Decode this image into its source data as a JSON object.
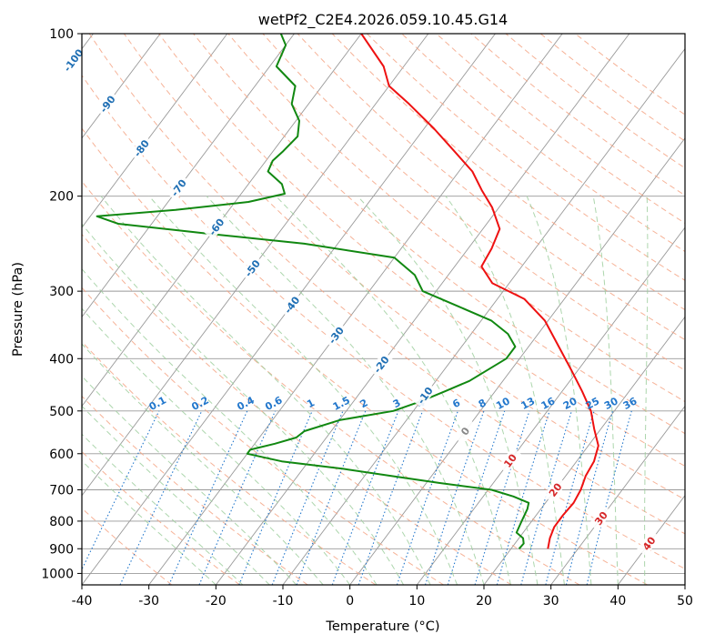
{
  "chart_data": {
    "type": "line",
    "subtype": "skew-t log-p",
    "title": "wetPf2_C2E4.2026.059.10.45.G14",
    "xlabel": "Temperature (°C)",
    "ylabel": "Pressure (hPa)",
    "xlim": [
      -40,
      50
    ],
    "ylim": [
      1050,
      100
    ],
    "x_ticks": [
      -40,
      -30,
      -20,
      -10,
      0,
      10,
      20,
      30,
      40,
      50
    ],
    "y_ticks": [
      1000,
      900,
      800,
      700,
      600,
      500,
      400,
      300,
      200,
      100
    ],
    "grid": true,
    "series": [
      {
        "name": "Temperature",
        "color": "#ee1111",
        "points": [
          {
            "p": 900,
            "t": 25.5
          },
          {
            "p": 860,
            "t": 24.6
          },
          {
            "p": 820,
            "t": 24.0
          },
          {
            "p": 780,
            "t": 24.0
          },
          {
            "p": 740,
            "t": 24.2
          },
          {
            "p": 700,
            "t": 23.8
          },
          {
            "p": 660,
            "t": 23.0
          },
          {
            "p": 620,
            "t": 22.6
          },
          {
            "p": 580,
            "t": 21.5
          },
          {
            "p": 540,
            "t": 19.0
          },
          {
            "p": 500,
            "t": 16.5
          },
          {
            "p": 460,
            "t": 13.0
          },
          {
            "p": 420,
            "t": 9.0
          },
          {
            "p": 380,
            "t": 4.5
          },
          {
            "p": 340,
            "t": -0.5
          },
          {
            "p": 310,
            "t": -6.0
          },
          {
            "p": 290,
            "t": -12.5
          },
          {
            "p": 270,
            "t": -16.0
          },
          {
            "p": 250,
            "t": -16.5
          },
          {
            "p": 230,
            "t": -17.5
          },
          {
            "p": 210,
            "t": -21.0
          },
          {
            "p": 195,
            "t": -24.5
          },
          {
            "p": 180,
            "t": -28.0
          },
          {
            "p": 165,
            "t": -33.0
          },
          {
            "p": 150,
            "t": -38.5
          },
          {
            "p": 135,
            "t": -45.0
          },
          {
            "p": 125,
            "t": -50.0
          },
          {
            "p": 115,
            "t": -53.0
          },
          {
            "p": 100,
            "t": -60.0
          }
        ]
      },
      {
        "name": "Dewpoint",
        "color": "#118811",
        "points": [
          {
            "p": 900,
            "t": 21.2
          },
          {
            "p": 880,
            "t": 21.3
          },
          {
            "p": 860,
            "t": 20.6
          },
          {
            "p": 840,
            "t": 19.0
          },
          {
            "p": 800,
            "t": 18.5
          },
          {
            "p": 760,
            "t": 18.0
          },
          {
            "p": 740,
            "t": 17.5
          },
          {
            "p": 720,
            "t": 14.5
          },
          {
            "p": 700,
            "t": 10.5
          },
          {
            "p": 680,
            "t": 2.0
          },
          {
            "p": 660,
            "t": -6.0
          },
          {
            "p": 640,
            "t": -14.0
          },
          {
            "p": 620,
            "t": -24.0
          },
          {
            "p": 600,
            "t": -30.0
          },
          {
            "p": 590,
            "t": -30.0
          },
          {
            "p": 575,
            "t": -27.0
          },
          {
            "p": 560,
            "t": -24.5
          },
          {
            "p": 545,
            "t": -24.0
          },
          {
            "p": 520,
            "t": -20.0
          },
          {
            "p": 500,
            "t": -13.0
          },
          {
            "p": 480,
            "t": -10.0
          },
          {
            "p": 460,
            "t": -7.5
          },
          {
            "p": 440,
            "t": -5.0
          },
          {
            "p": 400,
            "t": -2.0
          },
          {
            "p": 380,
            "t": -2.0
          },
          {
            "p": 360,
            "t": -4.5
          },
          {
            "p": 340,
            "t": -8.5
          },
          {
            "p": 320,
            "t": -15.0
          },
          {
            "p": 300,
            "t": -22.0
          },
          {
            "p": 280,
            "t": -25.0
          },
          {
            "p": 260,
            "t": -30.0
          },
          {
            "p": 245,
            "t": -45.0
          },
          {
            "p": 235,
            "t": -60.0
          },
          {
            "p": 225,
            "t": -75.0
          },
          {
            "p": 218,
            "t": -79.0
          },
          {
            "p": 212,
            "t": -68.0
          },
          {
            "p": 205,
            "t": -58.0
          },
          {
            "p": 198,
            "t": -53.5
          },
          {
            "p": 190,
            "t": -55.0
          },
          {
            "p": 180,
            "t": -58.5
          },
          {
            "p": 172,
            "t": -59.0
          },
          {
            "p": 165,
            "t": -58.5
          },
          {
            "p": 155,
            "t": -58.0
          },
          {
            "p": 145,
            "t": -59.5
          },
          {
            "p": 135,
            "t": -62.5
          },
          {
            "p": 125,
            "t": -64.0
          },
          {
            "p": 115,
            "t": -69.0
          },
          {
            "p": 105,
            "t": -70.0
          },
          {
            "p": 100,
            "t": -72.0
          }
        ]
      }
    ],
    "isotherm_labels": [
      {
        "text": "-100",
        "t": -100,
        "p": 112
      },
      {
        "text": "-90",
        "t": -90,
        "p": 135
      },
      {
        "text": "-80",
        "t": -80,
        "p": 163
      },
      {
        "text": "-70",
        "t": -70,
        "p": 193
      },
      {
        "text": "-60",
        "t": -60,
        "p": 228
      },
      {
        "text": "-50",
        "t": -50,
        "p": 272
      },
      {
        "text": "-40",
        "t": -40,
        "p": 318
      },
      {
        "text": "-30",
        "t": -30,
        "p": 362
      },
      {
        "text": "-20",
        "t": -20,
        "p": 410
      },
      {
        "text": "-10",
        "t": -10,
        "p": 468
      },
      {
        "text": "0",
        "t": 0,
        "p": 545
      },
      {
        "text": "10",
        "t": 10,
        "p": 618
      },
      {
        "text": "20",
        "t": 20,
        "p": 700
      },
      {
        "text": "30",
        "t": 30,
        "p": 790
      },
      {
        "text": "40",
        "t": 40,
        "p": 880
      }
    ],
    "mixing_ratio_labels": [
      "0.1",
      "0.2",
      "0.4",
      "0.6",
      "1",
      "1.5",
      "2",
      "3",
      "4",
      "6",
      "8",
      "10",
      "13",
      "16",
      "20",
      "25",
      "30",
      "36"
    ],
    "colors": {
      "temperature": "#ee1111",
      "dewpoint": "#118811",
      "isotherm": "#999999",
      "dry_adiabat": "#f4a585",
      "moist_adiabat": "#9fcf9f",
      "mixing_ratio": "#2277cc",
      "label_cold": "#1f6fb4",
      "label_zero": "#888888",
      "label_warm": "#d62728"
    }
  }
}
